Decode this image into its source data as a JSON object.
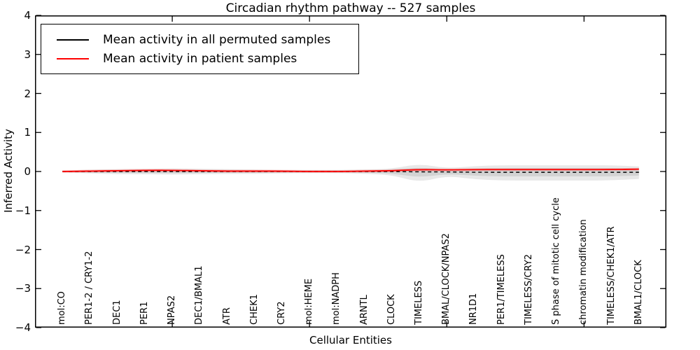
{
  "chart_data": {
    "type": "line",
    "title": "Circadian rhythm pathway -- 527 samples",
    "xlabel": "Cellular Entities",
    "ylabel": "Inferred Activity",
    "ylim": [
      -4,
      4
    ],
    "yticks": [
      4,
      3,
      2,
      1,
      0,
      -1,
      -2,
      -3,
      -4
    ],
    "xlim": [
      0,
      23
    ],
    "unlabeled_xticks": [
      5,
      10,
      15,
      20
    ],
    "grid": false,
    "legend_position": "upper left",
    "categories": [
      "mol:CO",
      "PER1-2 / CRY1-2",
      "DEC1",
      "PER1",
      "NPAS2",
      "DEC1/BMAL1",
      "ATR",
      "CHEK1",
      "CRY2",
      "mol:HEME",
      "mol:NADPH",
      "ARNTL",
      "CLOCK",
      "TIMELESS",
      "BMAL/CLOCK/NPAS2",
      "NR1D1",
      "PER1/TIMELESS",
      "TIMELESS/CRY2",
      "S phase of mitotic cell cycle",
      "chromatin modification",
      "TIMELESS/CHEK1/ATR",
      "BMAL1/CLOCK"
    ],
    "series": [
      {
        "name": "Mean activity in all permuted samples",
        "color": "#000000",
        "style": "dashed",
        "values": [
          0,
          0,
          0,
          0,
          0,
          0,
          0,
          0,
          0,
          0,
          0,
          0,
          0,
          -0.01,
          -0.01,
          -0.02,
          -0.02,
          -0.02,
          -0.02,
          -0.02,
          -0.02,
          -0.02
        ]
      },
      {
        "name": "Mean activity in patient samples",
        "color": "#ff0000",
        "style": "solid",
        "values": [
          0,
          0.01,
          0.02,
          0.03,
          0.03,
          0.02,
          0.01,
          0.01,
          0.01,
          0,
          0,
          0.01,
          0.02,
          0.05,
          0.04,
          0.05,
          0.05,
          0.05,
          0.05,
          0.05,
          0.05,
          0.06
        ]
      }
    ],
    "permuted_band": {
      "upper": [
        0.02,
        0.05,
        0.06,
        0.07,
        0.08,
        0.07,
        0.06,
        0.05,
        0.04,
        0.04,
        0.04,
        0.05,
        0.07,
        0.2,
        0.08,
        0.14,
        0.16,
        0.16,
        0.16,
        0.16,
        0.16,
        0.13
      ],
      "lower": [
        -0.02,
        -0.05,
        -0.07,
        -0.07,
        -0.08,
        -0.07,
        -0.06,
        -0.06,
        -0.05,
        -0.04,
        -0.04,
        -0.06,
        -0.09,
        -0.28,
        -0.11,
        -0.2,
        -0.23,
        -0.23,
        -0.23,
        -0.23,
        -0.23,
        -0.19
      ]
    },
    "patient_band_halfwidth": 0.035,
    "band_color": "rgba(0,0,0,0.09)",
    "patient_band_color": "rgba(255,0,0,0.14)",
    "axis_color": "#000000"
  },
  "legend": {
    "items": [
      {
        "label": "Mean activity in all permuted samples",
        "color": "#000000"
      },
      {
        "label": "Mean activity in patient samples",
        "color": "#ff0000"
      }
    ]
  }
}
